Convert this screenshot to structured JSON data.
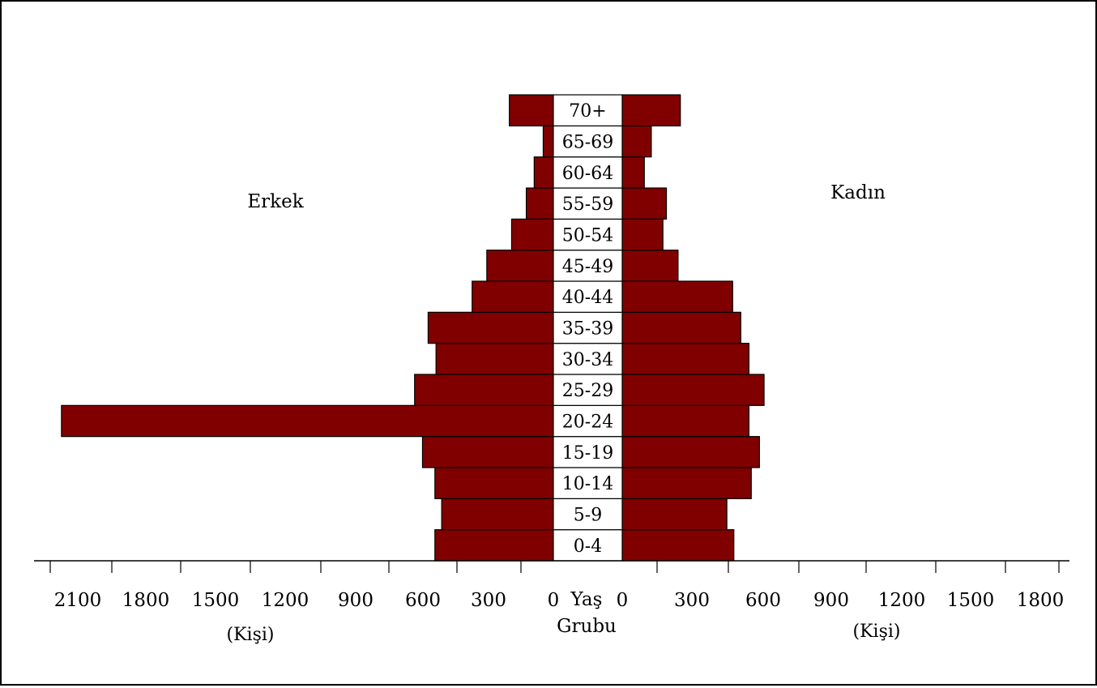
{
  "chart_data": {
    "type": "bar",
    "layout": "population-pyramid",
    "title": "",
    "categories": [
      "0-4",
      "5-9",
      "10-14",
      "15-19",
      "20-24",
      "25-29",
      "30-34",
      "35-39",
      "40-44",
      "45-49",
      "50-54",
      "55-59",
      "60-64",
      "65-69",
      "70+"
    ],
    "series": [
      {
        "name": "Erkek",
        "side": "left",
        "values": [
          525,
          495,
          525,
          580,
          2180,
          615,
          520,
          555,
          360,
          295,
          185,
          120,
          85,
          45,
          195
        ]
      },
      {
        "name": "Kadın",
        "side": "right",
        "values": [
          480,
          450,
          555,
          590,
          545,
          610,
          545,
          510,
          475,
          240,
          175,
          190,
          95,
          125,
          250
        ]
      }
    ],
    "center_label": [
      "Yaş",
      "Grubu"
    ],
    "left_unit": "(Kişi)",
    "right_unit": "(Kişi)",
    "left_ticks": [
      "2100",
      "1800",
      "1500",
      "1200",
      "900",
      "600",
      "300",
      "0"
    ],
    "right_ticks": [
      "0",
      "300",
      "600",
      "900",
      "1200",
      "1500",
      "1800"
    ],
    "xlim_left": [
      0,
      2180
    ],
    "xlim_right": [
      0,
      1900
    ],
    "bar_color": "#800000",
    "grid": false,
    "legend": "none"
  }
}
